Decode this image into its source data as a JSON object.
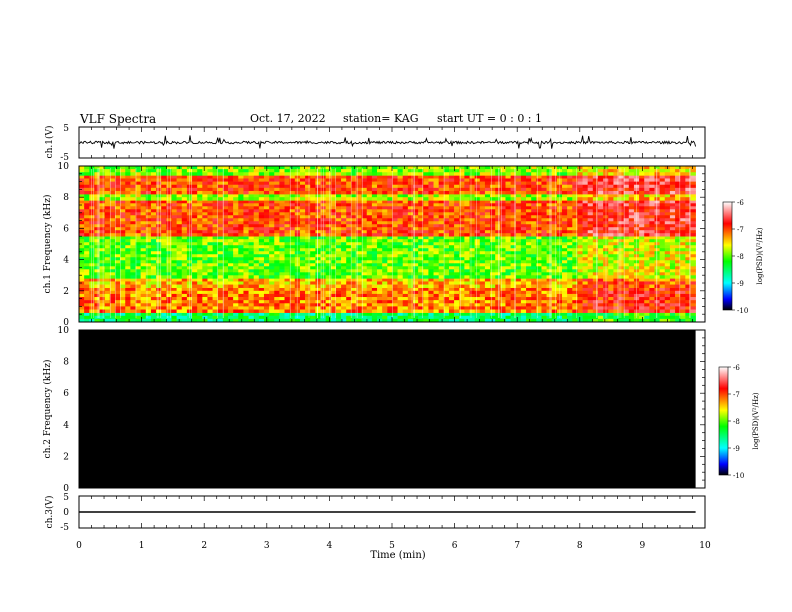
{
  "header": {
    "title": "VLF Spectra",
    "date": "Oct. 17, 2022",
    "station": "station= KAG",
    "start": "start  UT =   0 : 0  : 1"
  },
  "chart_data": [
    {
      "type": "line",
      "name": "ch1-waveform",
      "ylabel": "ch.1(V)",
      "ylim": [
        -5,
        5
      ],
      "y_ticks": [
        "5",
        "-5"
      ],
      "x": [
        0,
        9.85
      ],
      "y": [
        0,
        0
      ]
    },
    {
      "type": "heatmap",
      "name": "ch1-spectrogram",
      "ylabel": "ch.1 Frequency (kHz)",
      "ylim": [
        0,
        10
      ],
      "y_ticks": [
        "0",
        "2",
        "4",
        "6",
        "8",
        "10"
      ],
      "xlim": [
        0,
        10
      ],
      "data_end_min": 9.85,
      "colorbar": {
        "label": "log(PSD)(V²/Hz)",
        "range": [
          -10,
          -6
        ],
        "ticks": [
          "-6",
          "-7",
          "-8",
          "-9",
          "-10"
        ]
      },
      "bands": [
        {
          "from": 0,
          "to": 0.6,
          "level": -8.5
        },
        {
          "from": 0.6,
          "to": 2.2,
          "level": -7.2
        },
        {
          "from": 2.2,
          "to": 2.8,
          "level": -7.4
        },
        {
          "from": 2.8,
          "to": 5.5,
          "level": -8.0
        },
        {
          "from": 5.5,
          "to": 7.8,
          "level": -7.0
        },
        {
          "from": 7.8,
          "to": 8.2,
          "level": -7.8
        },
        {
          "from": 8.2,
          "to": 9.4,
          "level": -7.0
        },
        {
          "from": 9.4,
          "to": 10,
          "level": -7.9
        }
      ]
    },
    {
      "type": "heatmap",
      "name": "ch2-spectrogram",
      "ylabel": "ch.2 Frequency (kHz)",
      "ylim": [
        0,
        10
      ],
      "y_ticks": [
        "0",
        "2",
        "4",
        "6",
        "8",
        "10"
      ],
      "xlim": [
        0,
        10
      ],
      "data_end_min": 9.85,
      "colorbar": {
        "label": "log(PSD)(V²/Hz)",
        "range": [
          -10,
          -6
        ],
        "ticks": [
          "-6",
          "-7",
          "-8",
          "-9",
          "-10"
        ]
      },
      "no_signal": true
    },
    {
      "type": "line",
      "name": "ch3-waveform",
      "ylabel": "ch.3(V)",
      "ylim": [
        -5,
        5
      ],
      "y_ticks": [
        "5",
        "0",
        "-5"
      ],
      "x": [
        0,
        9.85
      ],
      "y": [
        0,
        0
      ]
    }
  ],
  "x_axis": {
    "label": "Time  (min)",
    "range": [
      0,
      10
    ],
    "ticks": [
      "0",
      "1",
      "2",
      "3",
      "4",
      "5",
      "6",
      "7",
      "8",
      "9",
      "10"
    ]
  },
  "colors": {
    "axis": "#000000",
    "colormap": [
      "#000000",
      "#0000ff",
      "#00ffff",
      "#00ff00",
      "#ffff00",
      "#ff0000",
      "#ffffff"
    ]
  }
}
